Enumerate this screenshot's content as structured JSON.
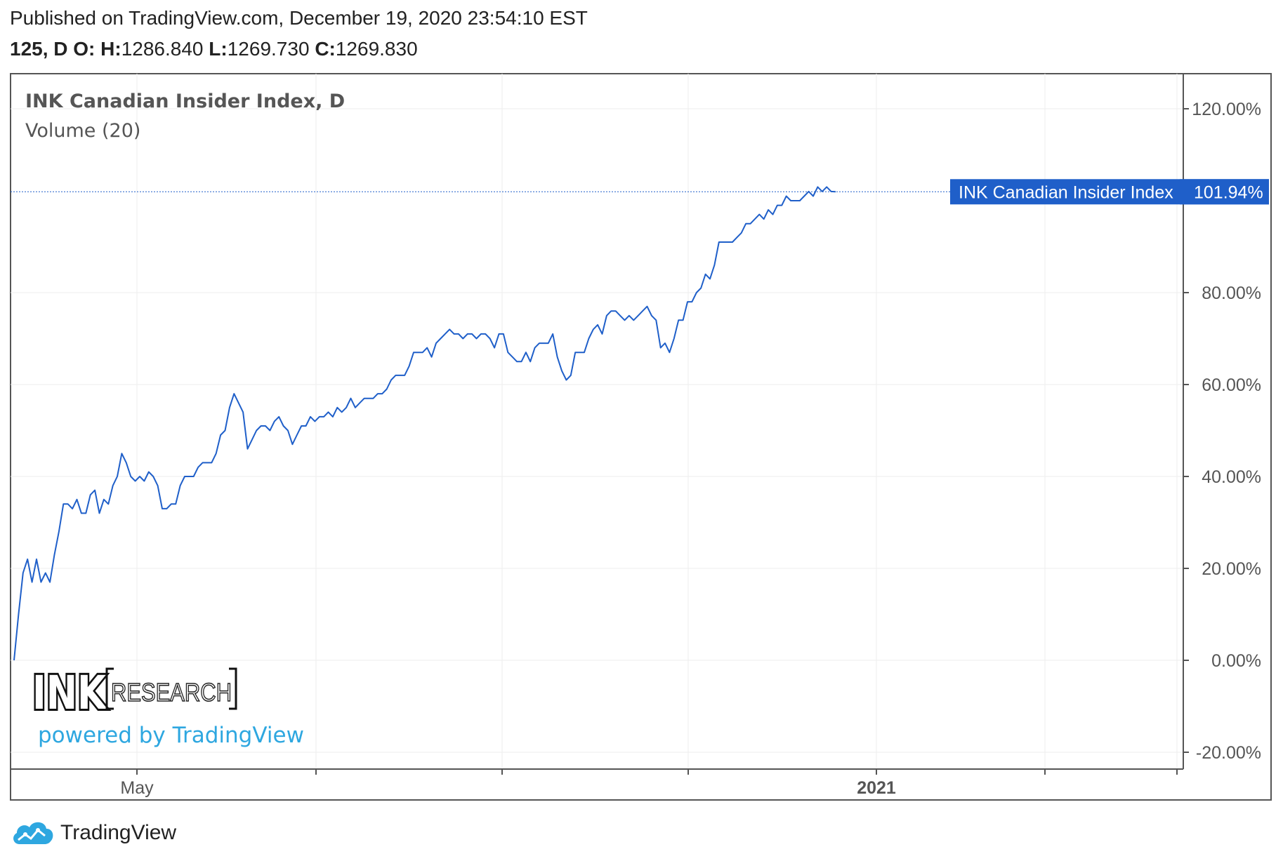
{
  "header": {
    "published": "Published on TradingView.com, December 19, 2020 23:54:10 EST",
    "symbol_interval": "125, D",
    "o_label": "O:",
    "h_label": "H:",
    "h_value": "1286.840",
    "l_label": "L:",
    "l_value": "1269.730",
    "c_label": "C:",
    "c_value": "1269.830"
  },
  "legend": {
    "title": "INK Canadian Insider Index, D",
    "volume": "Volume (20)"
  },
  "price_badge": {
    "name": "INK Canadian Insider Index",
    "value": "101.94%"
  },
  "watermark": {
    "logo_ink": "INK",
    "logo_research": "RESEARCH",
    "powered_by": "powered by TradingView"
  },
  "footer": {
    "brand": "TradingView"
  },
  "colors": {
    "line": "#1f5fc9",
    "badge": "#1f5fc9",
    "grid": "#eeeeee",
    "watermark_text": "#2ea7e0",
    "tradingview_logo": "#2ea7e0"
  },
  "chart_data": {
    "type": "line",
    "title": "INK Canadian Insider Index, D",
    "subtitle": "Volume (20)",
    "ylabel": "",
    "xlabel": "",
    "ylim": [
      -20,
      120
    ],
    "y_unit": "%",
    "y_ticks": [
      "120.00%",
      "80.00%",
      "60.00%",
      "40.00%",
      "20.00%",
      "0.00%",
      "-20.00%"
    ],
    "x_tick_labels": [
      "May",
      "2021"
    ],
    "x_range": [
      "2020-03-19",
      "2021-01-31"
    ],
    "grid": true,
    "last_value": 101.94,
    "series": [
      {
        "values": [
          [
            0,
            0
          ],
          [
            1,
            10
          ],
          [
            2,
            19
          ],
          [
            3,
            22
          ],
          [
            4,
            17
          ],
          [
            5,
            22
          ],
          [
            6,
            17
          ],
          [
            7,
            19
          ],
          [
            8,
            17
          ],
          [
            9,
            23
          ],
          [
            10,
            28
          ],
          [
            11,
            34
          ],
          [
            12,
            34
          ],
          [
            13,
            33
          ],
          [
            14,
            35
          ],
          [
            15,
            32
          ],
          [
            16,
            32
          ],
          [
            17,
            36
          ],
          [
            18,
            37
          ],
          [
            19,
            32
          ],
          [
            20,
            35
          ],
          [
            21,
            34
          ],
          [
            22,
            38
          ],
          [
            23,
            40
          ],
          [
            24,
            45
          ],
          [
            25,
            43
          ],
          [
            26,
            40
          ],
          [
            27,
            39
          ],
          [
            28,
            40
          ],
          [
            29,
            39
          ],
          [
            30,
            41
          ],
          [
            31,
            40
          ],
          [
            32,
            38
          ],
          [
            33,
            33
          ],
          [
            34,
            33
          ],
          [
            35,
            34
          ],
          [
            36,
            34
          ],
          [
            37,
            38
          ],
          [
            38,
            40
          ],
          [
            39,
            40
          ],
          [
            40,
            40
          ],
          [
            41,
            42
          ],
          [
            42,
            43
          ],
          [
            43,
            43
          ],
          [
            44,
            43
          ],
          [
            45,
            45
          ],
          [
            46,
            49
          ],
          [
            47,
            50
          ],
          [
            48,
            55
          ],
          [
            49,
            58
          ],
          [
            50,
            56
          ],
          [
            51,
            54
          ],
          [
            52,
            46
          ],
          [
            53,
            48
          ],
          [
            54,
            50
          ],
          [
            55,
            51
          ],
          [
            56,
            51
          ],
          [
            57,
            50
          ],
          [
            58,
            52
          ],
          [
            59,
            53
          ],
          [
            60,
            51
          ],
          [
            61,
            50
          ],
          [
            62,
            47
          ],
          [
            63,
            49
          ],
          [
            64,
            51
          ],
          [
            65,
            51
          ],
          [
            66,
            53
          ],
          [
            67,
            52
          ],
          [
            68,
            53
          ],
          [
            69,
            53
          ],
          [
            70,
            54
          ],
          [
            71,
            53
          ],
          [
            72,
            55
          ],
          [
            73,
            54
          ],
          [
            74,
            55
          ],
          [
            75,
            57
          ],
          [
            76,
            55
          ],
          [
            77,
            56
          ],
          [
            78,
            57
          ],
          [
            79,
            57
          ],
          [
            80,
            57
          ],
          [
            81,
            58
          ],
          [
            82,
            58
          ],
          [
            83,
            59
          ],
          [
            84,
            61
          ],
          [
            85,
            62
          ],
          [
            86,
            62
          ],
          [
            87,
            62
          ],
          [
            88,
            64
          ],
          [
            89,
            67
          ],
          [
            90,
            67
          ],
          [
            91,
            67
          ],
          [
            92,
            68
          ],
          [
            93,
            66
          ],
          [
            94,
            69
          ],
          [
            95,
            70
          ],
          [
            96,
            71
          ],
          [
            97,
            72
          ],
          [
            98,
            71
          ],
          [
            99,
            71
          ],
          [
            100,
            70
          ],
          [
            101,
            71
          ],
          [
            102,
            71
          ],
          [
            103,
            70
          ],
          [
            104,
            71
          ],
          [
            105,
            71
          ],
          [
            106,
            70
          ],
          [
            107,
            68
          ],
          [
            108,
            71
          ],
          [
            109,
            71
          ],
          [
            110,
            67
          ],
          [
            111,
            66
          ],
          [
            112,
            65
          ],
          [
            113,
            65
          ],
          [
            114,
            67
          ],
          [
            115,
            65
          ],
          [
            116,
            68
          ],
          [
            117,
            69
          ],
          [
            118,
            69
          ],
          [
            119,
            69
          ],
          [
            120,
            71
          ],
          [
            121,
            66
          ],
          [
            122,
            63
          ],
          [
            123,
            61
          ],
          [
            124,
            62
          ],
          [
            125,
            67
          ],
          [
            126,
            67
          ],
          [
            127,
            67
          ],
          [
            128,
            70
          ],
          [
            129,
            72
          ],
          [
            130,
            73
          ],
          [
            131,
            71
          ],
          [
            132,
            75
          ],
          [
            133,
            76
          ],
          [
            134,
            76
          ],
          [
            135,
            75
          ],
          [
            136,
            74
          ],
          [
            137,
            75
          ],
          [
            138,
            74
          ],
          [
            139,
            75
          ],
          [
            140,
            76
          ],
          [
            141,
            77
          ],
          [
            142,
            75
          ],
          [
            143,
            74
          ],
          [
            144,
            68
          ],
          [
            145,
            69
          ],
          [
            146,
            67
          ],
          [
            147,
            70
          ],
          [
            148,
            74
          ],
          [
            149,
            74
          ],
          [
            150,
            78
          ],
          [
            151,
            78
          ],
          [
            152,
            80
          ],
          [
            153,
            81
          ],
          [
            154,
            84
          ],
          [
            155,
            83
          ],
          [
            156,
            86
          ],
          [
            157,
            91
          ],
          [
            158,
            91
          ],
          [
            159,
            91
          ],
          [
            160,
            91
          ],
          [
            161,
            92
          ],
          [
            162,
            93
          ],
          [
            163,
            95
          ],
          [
            164,
            95
          ],
          [
            165,
            96
          ],
          [
            166,
            97
          ],
          [
            167,
            96
          ],
          [
            168,
            98
          ],
          [
            169,
            97
          ],
          [
            170,
            99
          ],
          [
            171,
            99
          ],
          [
            172,
            101
          ],
          [
            173,
            100
          ],
          [
            174,
            100
          ],
          [
            175,
            100
          ],
          [
            176,
            101
          ],
          [
            177,
            102
          ],
          [
            178,
            101
          ],
          [
            179,
            103
          ],
          [
            180,
            102
          ],
          [
            181,
            103
          ],
          [
            182,
            102
          ],
          [
            183,
            101.94
          ]
        ]
      }
    ]
  }
}
